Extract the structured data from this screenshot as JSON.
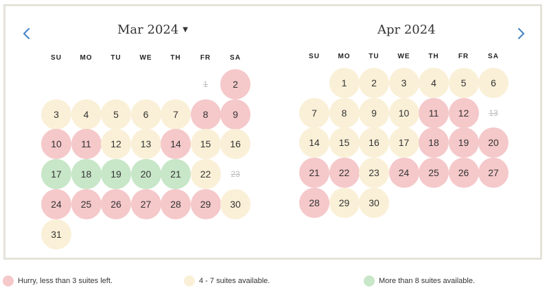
{
  "colors": {
    "red": "#f5c8ca",
    "yellow": "#faf0d7",
    "green": "#c8e6c8"
  },
  "nav": {
    "prev_icon": "chevron-left-icon",
    "next_icon": "chevron-right-icon"
  },
  "weekdays": [
    "SU",
    "MO",
    "TU",
    "WE",
    "TH",
    "FR",
    "SA"
  ],
  "months": [
    {
      "title": "Mar 2024",
      "has_dropdown": true,
      "first_weekday": 5,
      "days": [
        {
          "d": "1",
          "s": "disabled"
        },
        {
          "d": "2",
          "s": "red"
        },
        {
          "d": "3",
          "s": "yellow"
        },
        {
          "d": "4",
          "s": "yellow"
        },
        {
          "d": "5",
          "s": "yellow"
        },
        {
          "d": "6",
          "s": "yellow"
        },
        {
          "d": "7",
          "s": "yellow"
        },
        {
          "d": "8",
          "s": "red"
        },
        {
          "d": "9",
          "s": "red"
        },
        {
          "d": "10",
          "s": "red"
        },
        {
          "d": "11",
          "s": "red"
        },
        {
          "d": "12",
          "s": "yellow"
        },
        {
          "d": "13",
          "s": "yellow"
        },
        {
          "d": "14",
          "s": "red"
        },
        {
          "d": "15",
          "s": "yellow"
        },
        {
          "d": "16",
          "s": "yellow"
        },
        {
          "d": "17",
          "s": "green"
        },
        {
          "d": "18",
          "s": "green"
        },
        {
          "d": "19",
          "s": "green"
        },
        {
          "d": "20",
          "s": "green"
        },
        {
          "d": "21",
          "s": "green"
        },
        {
          "d": "22",
          "s": "yellow"
        },
        {
          "d": "23",
          "s": "disabled"
        },
        {
          "d": "24",
          "s": "red"
        },
        {
          "d": "25",
          "s": "red"
        },
        {
          "d": "26",
          "s": "red"
        },
        {
          "d": "27",
          "s": "red"
        },
        {
          "d": "28",
          "s": "red"
        },
        {
          "d": "29",
          "s": "red"
        },
        {
          "d": "30",
          "s": "yellow"
        },
        {
          "d": "31",
          "s": "yellow"
        }
      ]
    },
    {
      "title": "Apr 2024",
      "has_dropdown": false,
      "first_weekday": 1,
      "days": [
        {
          "d": "1",
          "s": "yellow"
        },
        {
          "d": "2",
          "s": "yellow"
        },
        {
          "d": "3",
          "s": "yellow"
        },
        {
          "d": "4",
          "s": "yellow"
        },
        {
          "d": "5",
          "s": "yellow"
        },
        {
          "d": "6",
          "s": "yellow"
        },
        {
          "d": "7",
          "s": "yellow"
        },
        {
          "d": "8",
          "s": "yellow"
        },
        {
          "d": "9",
          "s": "yellow"
        },
        {
          "d": "10",
          "s": "yellow"
        },
        {
          "d": "11",
          "s": "red"
        },
        {
          "d": "12",
          "s": "red"
        },
        {
          "d": "13",
          "s": "disabled"
        },
        {
          "d": "14",
          "s": "yellow"
        },
        {
          "d": "15",
          "s": "yellow"
        },
        {
          "d": "16",
          "s": "yellow"
        },
        {
          "d": "17",
          "s": "yellow"
        },
        {
          "d": "18",
          "s": "red"
        },
        {
          "d": "19",
          "s": "red"
        },
        {
          "d": "20",
          "s": "red"
        },
        {
          "d": "21",
          "s": "red"
        },
        {
          "d": "22",
          "s": "red"
        },
        {
          "d": "23",
          "s": "yellow"
        },
        {
          "d": "24",
          "s": "red"
        },
        {
          "d": "25",
          "s": "red"
        },
        {
          "d": "26",
          "s": "red"
        },
        {
          "d": "27",
          "s": "red"
        },
        {
          "d": "28",
          "s": "red"
        },
        {
          "d": "29",
          "s": "yellow"
        },
        {
          "d": "30",
          "s": "yellow"
        }
      ]
    }
  ],
  "legend": [
    {
      "label": "Hurry, less than 3 suites left.",
      "color": "red"
    },
    {
      "label": "4 - 7 suites available.",
      "color": "yellow"
    },
    {
      "label": "More than 8 suites available.",
      "color": "green"
    }
  ]
}
